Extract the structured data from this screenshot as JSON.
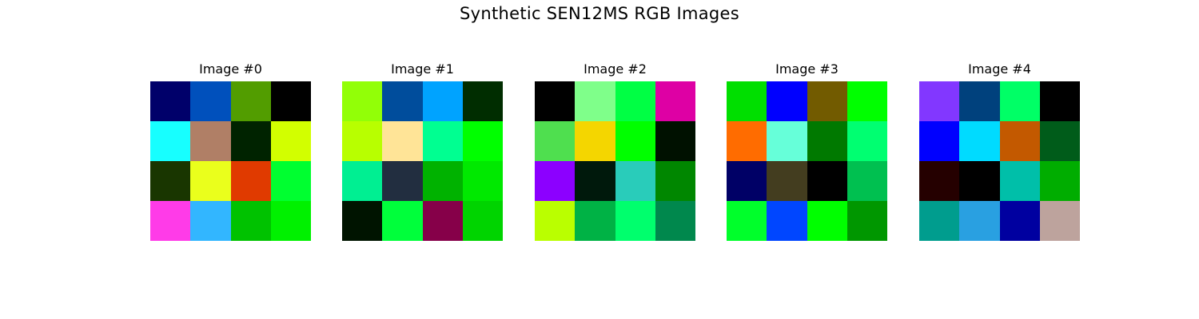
{
  "figure": {
    "title": "Synthetic SEN12MS RGB Images"
  },
  "chart_data": {
    "type": "heatmap",
    "title": "Synthetic SEN12MS RGB Images",
    "grid_size": [
      4,
      4
    ],
    "axes_visible": false,
    "images": [
      {
        "title": "Image #0",
        "pixels": [
          [
            "#00006a",
            "#0050bc",
            "#529d00",
            "#000000"
          ],
          [
            "#17ffff",
            "#b07f66",
            "#002300",
            "#d2ff00"
          ],
          [
            "#193600",
            "#eaff1c",
            "#e03a00",
            "#00ff30"
          ],
          [
            "#ff3be8",
            "#32b6ff",
            "#00c200",
            "#00f100"
          ]
        ]
      },
      {
        "title": "Image #1",
        "pixels": [
          [
            "#92ff07",
            "#004d9c",
            "#00a3ff",
            "#002d00"
          ],
          [
            "#b8ff00",
            "#ffe497",
            "#00ff91",
            "#00ff00"
          ],
          [
            "#00ef92",
            "#222e40",
            "#00b200",
            "#00e900"
          ],
          [
            "#001400",
            "#00ff3b",
            "#860049",
            "#00d400"
          ]
        ]
      },
      {
        "title": "Image #2",
        "pixels": [
          [
            "#000000",
            "#7fff8a",
            "#00ff44",
            "#de00a4"
          ],
          [
            "#4fdf4f",
            "#f4d600",
            "#00ff00",
            "#001100"
          ],
          [
            "#8c00ff",
            "#00190c",
            "#29ccba",
            "#008700"
          ],
          [
            "#baff00",
            "#00b245",
            "#00ff6d",
            "#00884d"
          ]
        ]
      },
      {
        "title": "Image #3",
        "pixels": [
          [
            "#00df00",
            "#0000ff",
            "#725b00",
            "#00ff00"
          ],
          [
            "#ff6c00",
            "#66ffd9",
            "#007900",
            "#00ff71"
          ],
          [
            "#000066",
            "#433d1f",
            "#000000",
            "#00c050"
          ],
          [
            "#00ff2b",
            "#0046ff",
            "#00ff00",
            "#009700"
          ]
        ]
      },
      {
        "title": "Image #4",
        "pixels": [
          [
            "#8237ff",
            "#00417d",
            "#00ff66",
            "#000000"
          ],
          [
            "#0000ff",
            "#00dbff",
            "#c35900",
            "#005c1a"
          ],
          [
            "#250000",
            "#000000",
            "#00bfa9",
            "#00ad00"
          ],
          [
            "#009d8e",
            "#29a0e1",
            "#0000a0",
            "#bda39d"
          ]
        ]
      }
    ]
  }
}
